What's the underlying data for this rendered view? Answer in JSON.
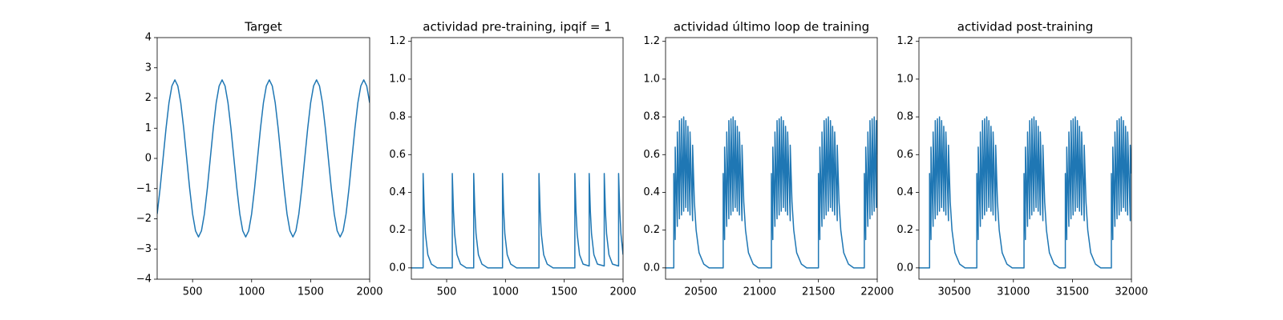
{
  "chart_data": [
    {
      "type": "line",
      "title": "Target",
      "color": "#1f77b4",
      "x": [
        200,
        225,
        250,
        275,
        300,
        325,
        350,
        375,
        400,
        425,
        450,
        475,
        500,
        525,
        550,
        575,
        600,
        625,
        650,
        675,
        700,
        725,
        750,
        775,
        800,
        825,
        850,
        875,
        900,
        925,
        950,
        975,
        1000,
        1025,
        1050,
        1075,
        1100,
        1125,
        1150,
        1175,
        1200,
        1225,
        1250,
        1275,
        1300,
        1325,
        1350,
        1375,
        1400,
        1425,
        1450,
        1475,
        1500,
        1525,
        1550,
        1575,
        1600,
        1625,
        1650,
        1675,
        1700,
        1725,
        1750,
        1775,
        1800,
        1825,
        1850,
        1875,
        1900,
        1925,
        1950,
        1975,
        2000
      ],
      "values": [
        -1.84,
        -0.99,
        0,
        0.99,
        1.84,
        2.4,
        2.6,
        2.4,
        1.84,
        0.99,
        0,
        -0.99,
        -1.84,
        -2.4,
        -2.6,
        -2.4,
        -1.84,
        -0.99,
        0,
        0.99,
        1.84,
        2.4,
        2.6,
        2.4,
        1.84,
        0.99,
        0,
        -0.99,
        -1.84,
        -2.4,
        -2.6,
        -2.4,
        -1.84,
        -0.99,
        0,
        0.99,
        1.84,
        2.4,
        2.6,
        2.4,
        1.84,
        0.99,
        0,
        -0.99,
        -1.84,
        -2.4,
        -2.6,
        -2.4,
        -1.84,
        -0.99,
        0,
        0.99,
        1.84,
        2.4,
        2.6,
        2.4,
        1.84,
        0.99,
        0,
        -0.99,
        -1.84,
        -2.4,
        -2.6,
        -2.4,
        -1.84,
        -0.99,
        0,
        0.99,
        1.84,
        2.4,
        2.6,
        2.4,
        1.84
      ],
      "xlim": [
        200,
        2000
      ],
      "xticks": [
        500,
        1000,
        1500,
        2000
      ],
      "ylim": [
        -4,
        4
      ],
      "yticks": [
        {
          "value": -4,
          "label": "−4"
        },
        {
          "value": -3,
          "label": "−3"
        },
        {
          "value": -2,
          "label": "−2"
        },
        {
          "value": -1,
          "label": "−1"
        },
        0,
        1,
        2,
        3,
        4
      ]
    },
    {
      "type": "line",
      "title": "actividad pre-training, ipqif = 1",
      "color": "#1f77b4",
      "x": [
        200,
        300,
        300,
        310,
        320,
        340,
        370,
        420,
        548,
        548,
        558,
        568,
        588,
        618,
        668,
        730,
        730,
        740,
        750,
        770,
        800,
        850,
        975,
        975,
        985,
        995,
        1015,
        1045,
        1095,
        1285,
        1285,
        1295,
        1305,
        1325,
        1355,
        1405,
        1590,
        1590,
        1600,
        1610,
        1630,
        1660,
        1712,
        1712,
        1722,
        1732,
        1752,
        1782,
        1840,
        1840,
        1850,
        1860,
        1880,
        1910,
        1962,
        1962,
        1972,
        1982,
        2000
      ],
      "values": [
        0,
        0,
        0.5,
        0.3,
        0.18,
        0.07,
        0.02,
        0,
        0,
        0.5,
        0.3,
        0.18,
        0.07,
        0.02,
        0,
        0,
        0.5,
        0.3,
        0.18,
        0.07,
        0.02,
        0,
        0,
        0.5,
        0.3,
        0.18,
        0.07,
        0.02,
        0,
        0,
        0.5,
        0.3,
        0.18,
        0.07,
        0.02,
        0,
        0,
        0.5,
        0.3,
        0.18,
        0.07,
        0.02,
        0.01,
        0.5,
        0.3,
        0.18,
        0.07,
        0.02,
        0.01,
        0.5,
        0.3,
        0.18,
        0.07,
        0.02,
        0.01,
        0.5,
        0.3,
        0.18,
        0.07
      ],
      "xlim": [
        200,
        2000
      ],
      "xticks": [
        500,
        1000,
        1500,
        2000
      ],
      "ylim": [
        -0.06,
        1.22
      ],
      "yticks": [
        {
          "value": 0,
          "label": "0.0"
        },
        0.2,
        0.4,
        0.6,
        0.8,
        {
          "value": 1,
          "label": "1.0"
        },
        1.2
      ]
    },
    {
      "type": "line",
      "title": "actividad último loop de training",
      "color": "#1f77b4",
      "x": [
        20200,
        20270,
        20270,
        20282,
        20282,
        20300,
        20300,
        20318,
        20318,
        20336,
        20336,
        20354,
        20354,
        20372,
        20372,
        20390,
        20390,
        20408,
        20408,
        20430,
        20430,
        20445,
        20460,
        20485,
        20525,
        20570,
        20690,
        20690,
        20702,
        20702,
        20720,
        20720,
        20738,
        20738,
        20756,
        20756,
        20774,
        20774,
        20792,
        20792,
        20810,
        20810,
        20828,
        20828,
        20850,
        20850,
        20865,
        20880,
        20905,
        20945,
        20990,
        21100,
        21100,
        21112,
        21112,
        21130,
        21130,
        21148,
        21148,
        21166,
        21166,
        21184,
        21184,
        21202,
        21202,
        21220,
        21220,
        21238,
        21238,
        21260,
        21260,
        21275,
        21290,
        21315,
        21355,
        21400,
        21500,
        21500,
        21512,
        21512,
        21530,
        21530,
        21548,
        21548,
        21566,
        21566,
        21584,
        21584,
        21602,
        21602,
        21620,
        21620,
        21638,
        21638,
        21660,
        21660,
        21675,
        21690,
        21715,
        21755,
        21800,
        21890,
        21890,
        21902,
        21902,
        21920,
        21920,
        21938,
        21938,
        21956,
        21956,
        21974,
        21974,
        21992,
        21992,
        22000
      ],
      "values": [
        0,
        0,
        0.5,
        0.15,
        0.64,
        0.22,
        0.72,
        0.26,
        0.78,
        0.28,
        0.79,
        0.3,
        0.8,
        0.32,
        0.78,
        0.3,
        0.75,
        0.28,
        0.72,
        0.25,
        0.65,
        0.35,
        0.2,
        0.08,
        0.02,
        0,
        0,
        0.5,
        0.15,
        0.64,
        0.22,
        0.72,
        0.26,
        0.78,
        0.28,
        0.79,
        0.3,
        0.8,
        0.32,
        0.78,
        0.3,
        0.75,
        0.28,
        0.72,
        0.25,
        0.65,
        0.35,
        0.2,
        0.08,
        0.02,
        0,
        0,
        0.5,
        0.15,
        0.64,
        0.22,
        0.72,
        0.26,
        0.78,
        0.28,
        0.79,
        0.3,
        0.8,
        0.32,
        0.78,
        0.3,
        0.75,
        0.28,
        0.72,
        0.25,
        0.65,
        0.35,
        0.2,
        0.08,
        0.02,
        0,
        0,
        0.5,
        0.15,
        0.64,
        0.22,
        0.72,
        0.26,
        0.78,
        0.28,
        0.79,
        0.3,
        0.8,
        0.32,
        0.78,
        0.3,
        0.75,
        0.28,
        0.72,
        0.25,
        0.65,
        0.35,
        0.2,
        0.08,
        0.02,
        0,
        0,
        0.5,
        0.15,
        0.64,
        0.22,
        0.72,
        0.26,
        0.78,
        0.28,
        0.79,
        0.3,
        0.8,
        0.32,
        0.78,
        0.6
      ],
      "xlim": [
        20200,
        22000
      ],
      "xticks": [
        20500,
        21000,
        21500,
        22000
      ],
      "ylim": [
        -0.06,
        1.22
      ],
      "yticks": [
        {
          "value": 0,
          "label": "0.0"
        },
        0.2,
        0.4,
        0.6,
        0.8,
        {
          "value": 1,
          "label": "1.0"
        },
        1.2
      ]
    },
    {
      "type": "line",
      "title": "actividad post-training",
      "color": "#1f77b4",
      "x": [
        30200,
        30290,
        30290,
        30302,
        30302,
        30320,
        30320,
        30338,
        30338,
        30356,
        30356,
        30374,
        30374,
        30392,
        30392,
        30410,
        30410,
        30428,
        30428,
        30450,
        30450,
        30465,
        30480,
        30505,
        30545,
        30590,
        30690,
        30690,
        30702,
        30702,
        30720,
        30720,
        30738,
        30738,
        30756,
        30756,
        30774,
        30774,
        30792,
        30792,
        30810,
        30810,
        30828,
        30828,
        30850,
        30850,
        30865,
        30880,
        30905,
        30945,
        30990,
        31090,
        31090,
        31102,
        31102,
        31120,
        31120,
        31138,
        31138,
        31156,
        31156,
        31174,
        31174,
        31192,
        31192,
        31210,
        31210,
        31228,
        31228,
        31250,
        31250,
        31265,
        31280,
        31305,
        31345,
        31390,
        31440,
        31440,
        31452,
        31452,
        31470,
        31470,
        31488,
        31488,
        31506,
        31506,
        31524,
        31524,
        31542,
        31542,
        31560,
        31560,
        31578,
        31578,
        31600,
        31600,
        31615,
        31630,
        31655,
        31695,
        31740,
        31830,
        31830,
        31842,
        31842,
        31860,
        31860,
        31878,
        31878,
        31896,
        31896,
        31914,
        31914,
        31932,
        31932,
        31950,
        31950,
        31968,
        31968,
        31990,
        31990,
        32000
      ],
      "values": [
        0,
        0,
        0.5,
        0.15,
        0.64,
        0.22,
        0.72,
        0.26,
        0.78,
        0.28,
        0.79,
        0.3,
        0.8,
        0.32,
        0.78,
        0.3,
        0.75,
        0.28,
        0.72,
        0.25,
        0.65,
        0.35,
        0.2,
        0.08,
        0.02,
        0,
        0,
        0.5,
        0.15,
        0.64,
        0.22,
        0.72,
        0.26,
        0.78,
        0.28,
        0.79,
        0.3,
        0.8,
        0.32,
        0.78,
        0.3,
        0.75,
        0.28,
        0.72,
        0.25,
        0.65,
        0.35,
        0.2,
        0.08,
        0.02,
        0,
        0,
        0.5,
        0.15,
        0.64,
        0.22,
        0.72,
        0.26,
        0.78,
        0.28,
        0.79,
        0.3,
        0.8,
        0.32,
        0.78,
        0.3,
        0.75,
        0.28,
        0.72,
        0.25,
        0.65,
        0.35,
        0.2,
        0.08,
        0.02,
        0,
        0,
        0.5,
        0.15,
        0.64,
        0.22,
        0.72,
        0.26,
        0.78,
        0.28,
        0.79,
        0.3,
        0.8,
        0.32,
        0.78,
        0.3,
        0.75,
        0.28,
        0.72,
        0.25,
        0.65,
        0.35,
        0.2,
        0.08,
        0.02,
        0,
        0,
        0.5,
        0.15,
        0.64,
        0.22,
        0.72,
        0.26,
        0.78,
        0.28,
        0.79,
        0.3,
        0.8,
        0.32,
        0.78,
        0.3,
        0.75,
        0.28,
        0.72,
        0.25,
        0.65,
        0.5
      ],
      "xlim": [
        30200,
        32000
      ],
      "xticks": [
        30500,
        31000,
        31500,
        32000
      ],
      "ylim": [
        -0.06,
        1.22
      ],
      "yticks": [
        {
          "value": 0,
          "label": "0.0"
        },
        0.2,
        0.4,
        0.6,
        0.8,
        {
          "value": 1,
          "label": "1.0"
        },
        1.2
      ]
    }
  ]
}
